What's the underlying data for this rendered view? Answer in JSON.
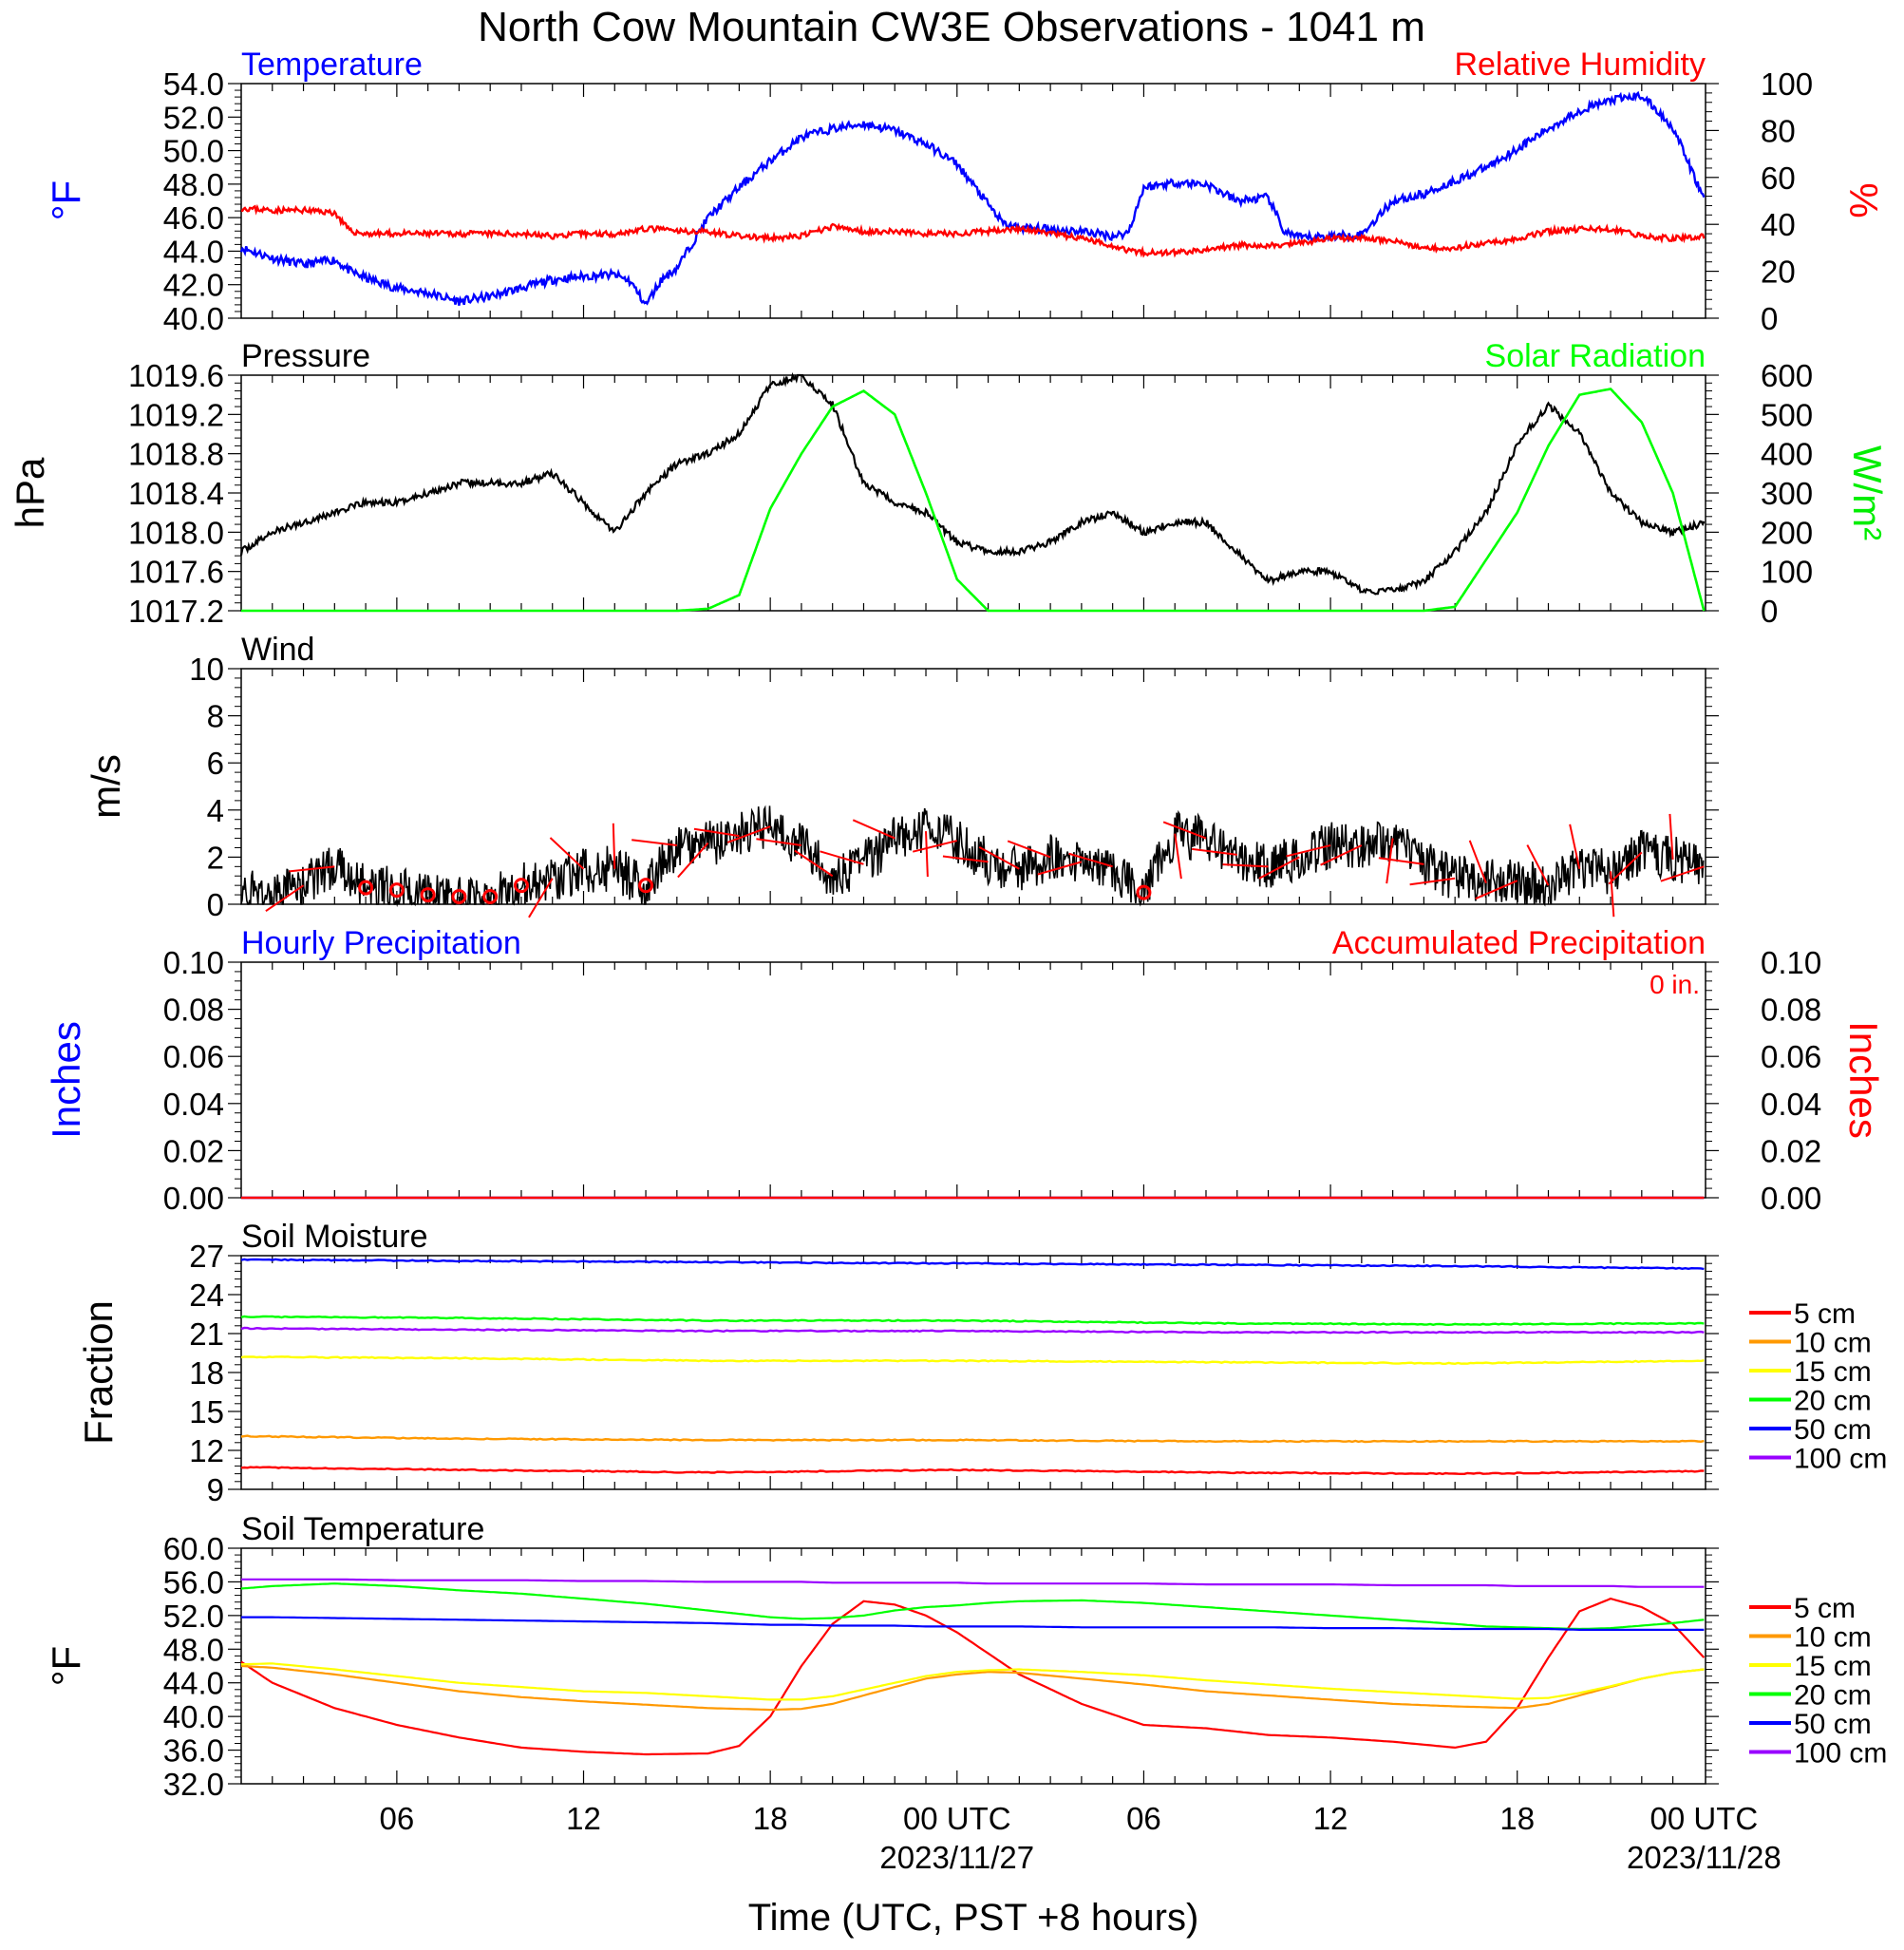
{
  "figure": {
    "title": "North Cow Mountain CW3E Observations - 1041 m",
    "xlabel": "Time (UTC, PST +8 hours)",
    "xticks": [
      {
        "t": 6,
        "label": "06"
      },
      {
        "t": 12,
        "label": "12"
      },
      {
        "t": 18,
        "label": "18"
      },
      {
        "t": 24,
        "label": "00 UTC",
        "sublabel": "2023/11/27"
      },
      {
        "t": 30,
        "label": "06"
      },
      {
        "t": 36,
        "label": "12"
      },
      {
        "t": 42,
        "label": "18"
      },
      {
        "t": 48,
        "label": "00 UTC",
        "sublabel": "2023/11/28"
      }
    ],
    "x_range_hours": [
      1,
      48.05
    ]
  },
  "chart_data": [
    {
      "type": "line",
      "panel": "temperature-rh",
      "title_left": "Temperature",
      "title_right": "Relative Humidity",
      "ylabel_left": "°F",
      "ylabel_right": "%",
      "ylim_left": [
        40,
        54
      ],
      "yticks_left": [
        "54.0",
        "52.0",
        "50.0",
        "48.0",
        "46.0",
        "44.0",
        "42.0",
        "40.0"
      ],
      "ylim_right": [
        0,
        100
      ],
      "yticks_right": [
        "100",
        "80",
        "60",
        "40",
        "20",
        "0"
      ],
      "x_hours": [
        1,
        2,
        3,
        4,
        4.5,
        5,
        6,
        7,
        8,
        9,
        10,
        11,
        12,
        13,
        13.5,
        14,
        14.5,
        15,
        16,
        17,
        18,
        19,
        20,
        21,
        22,
        23,
        24,
        25,
        25.5,
        26,
        27,
        28,
        29,
        29.5,
        30,
        31,
        32,
        33,
        34,
        34.5,
        35,
        36,
        37,
        38,
        39,
        40,
        41,
        42,
        43,
        44,
        45,
        46,
        47,
        48
      ],
      "series": [
        {
          "name": "Temperature",
          "color": "#0000ff",
          "axis": "left",
          "values": [
            44.2,
            43.6,
            43.2,
            43.5,
            42.8,
            42.4,
            41.8,
            41.5,
            41.0,
            41.3,
            41.8,
            42.3,
            42.5,
            42.6,
            42.2,
            40.8,
            42.3,
            43.0,
            46.0,
            47.8,
            49.4,
            50.8,
            51.3,
            51.6,
            51.2,
            50.4,
            49.2,
            46.8,
            45.6,
            45.4,
            45.3,
            45.2,
            44.9,
            45.1,
            47.8,
            48.1,
            48.0,
            47.0,
            47.2,
            45.2,
            44.8,
            44.9,
            45.0,
            47.0,
            47.4,
            48.2,
            49.0,
            50.1,
            51.3,
            52.4,
            53.0,
            53.3,
            51.4,
            47.1
          ]
        },
        {
          "name": "Relative Humidity",
          "color": "#ff0000",
          "axis": "right",
          "values": [
            47,
            46,
            46,
            45,
            37,
            36,
            36,
            36,
            36,
            36,
            36,
            35,
            36,
            36,
            37,
            38,
            38,
            37,
            37,
            35,
            34,
            35,
            39,
            37,
            37,
            36,
            36,
            37,
            38,
            38,
            36,
            34,
            31,
            29,
            28,
            28,
            29,
            31,
            31,
            31,
            32,
            34,
            34,
            33,
            30,
            30,
            32,
            34,
            37,
            38,
            38,
            35,
            34,
            35
          ]
        }
      ]
    },
    {
      "type": "line",
      "panel": "pressure-solar",
      "title_left": "Pressure",
      "title_right": "Solar Radiation",
      "ylabel_left": "hPa",
      "ylabel_right": "W/m²",
      "ylim_left": [
        1017.2,
        1019.6
      ],
      "yticks_left": [
        "1019.6",
        "1019.2",
        "1018.8",
        "1018.4",
        "1018.0",
        "1017.6",
        "1017.2"
      ],
      "ylim_right": [
        0,
        600
      ],
      "yticks_right": [
        "600",
        "500",
        "400",
        "300",
        "200",
        "100",
        "0"
      ],
      "x_hours": [
        1,
        2,
        3,
        4,
        5,
        6,
        7,
        8,
        9,
        10,
        11,
        12,
        13,
        14,
        15,
        16,
        17,
        18,
        19,
        20,
        21,
        22,
        23,
        24,
        25,
        26,
        27,
        28,
        29,
        30,
        31,
        32,
        33,
        34,
        35,
        36,
        37,
        38,
        39,
        40,
        41,
        42,
        43,
        44,
        45,
        46,
        47,
        48
      ],
      "series": [
        {
          "name": "Pressure",
          "color": "#000000",
          "axis": "left",
          "values": [
            1017.8,
            1018.0,
            1018.1,
            1018.2,
            1018.3,
            1018.3,
            1018.4,
            1018.5,
            1018.5,
            1018.5,
            1018.6,
            1018.3,
            1018.0,
            1018.4,
            1018.7,
            1018.8,
            1019.0,
            1019.5,
            1019.6,
            1019.3,
            1018.5,
            1018.3,
            1018.2,
            1017.9,
            1017.8,
            1017.8,
            1017.9,
            1018.1,
            1018.2,
            1018.0,
            1018.1,
            1018.1,
            1017.8,
            1017.5,
            1017.6,
            1017.6,
            1017.4,
            1017.4,
            1017.5,
            1017.8,
            1018.2,
            1018.9,
            1019.3,
            1019.0,
            1018.4,
            1018.1,
            1018.0,
            1018.1
          ]
        },
        {
          "name": "Solar Radiation",
          "color": "#00ff00",
          "axis": "right",
          "values": [
            0,
            0,
            0,
            0,
            0,
            0,
            0,
            0,
            0,
            0,
            0,
            0,
            0,
            0,
            0,
            5,
            40,
            260,
            400,
            520,
            560,
            500,
            300,
            80,
            0,
            0,
            0,
            0,
            0,
            0,
            0,
            0,
            0,
            0,
            0,
            0,
            0,
            0,
            0,
            10,
            130,
            250,
            420,
            550,
            565,
            480,
            300,
            0
          ]
        }
      ]
    },
    {
      "type": "line",
      "panel": "wind",
      "title_left": "Wind",
      "ylabel_left": "m/s",
      "ylim": [
        0,
        10
      ],
      "yticks": [
        "10",
        "8",
        "6",
        "4",
        "2",
        "0"
      ],
      "x_hours": [
        1,
        2,
        3,
        4,
        5,
        6,
        7,
        8,
        9,
        10,
        11,
        12,
        13,
        14,
        15,
        16,
        17,
        18,
        19,
        20,
        21,
        22,
        23,
        24,
        25,
        26,
        27,
        28,
        29,
        30,
        31,
        32,
        33,
        34,
        35,
        36,
        37,
        38,
        39,
        40,
        41,
        42,
        43,
        44,
        45,
        46,
        47,
        48
      ],
      "series": [
        {
          "name": "Wind speed",
          "color": "#000000",
          "values": [
            0.5,
            0.3,
            0.8,
            1.6,
            0.7,
            0.6,
            0.4,
            0.2,
            0.2,
            0.8,
            1.1,
            1.5,
            1.5,
            0.8,
            2.5,
            2.6,
            2.9,
            3.3,
            2.5,
            1.2,
            1.7,
            2.8,
            3.1,
            2.7,
            1.8,
            1.5,
            2.0,
            1.8,
            1.6,
            0.5,
            3.0,
            2.8,
            2.1,
            1.6,
            2.0,
            2.5,
            2.5,
            2.8,
            1.7,
            1.1,
            0.9,
            1.0,
            0.8,
            1.5,
            1.4,
            2.2,
            1.9,
            1.6
          ]
        },
        {
          "name": "Wind barbs",
          "color": "#ff0000"
        }
      ],
      "calm_markers_hours": [
        5,
        6,
        7,
        8,
        9,
        10,
        14,
        30
      ]
    },
    {
      "type": "line",
      "panel": "precipitation",
      "title_left": "Hourly Precipitation",
      "title_right": "Accumulated Precipitation",
      "annotation": "0 in.",
      "ylabel_left": "Inches",
      "ylabel_right": "Inches",
      "ylim": [
        0,
        0.1
      ],
      "yticks_left": [
        "0.10",
        "0.08",
        "0.06",
        "0.04",
        "0.02",
        "0.00"
      ],
      "yticks_right": [
        "0.10",
        "0.08",
        "0.06",
        "0.04",
        "0.02",
        "0.00"
      ],
      "x_hours": [
        1,
        48
      ],
      "series": [
        {
          "name": "Hourly Precipitation",
          "color": "#0000ff",
          "values": [
            0,
            0
          ]
        },
        {
          "name": "Accumulated Precipitation",
          "color": "#ff0000",
          "values": [
            0,
            0
          ]
        }
      ]
    },
    {
      "type": "line",
      "panel": "soil-moisture",
      "title_left": "Soil Moisture",
      "ylabel_left": "Fraction",
      "ylim": [
        9,
        27
      ],
      "yticks": [
        "27",
        "24",
        "21",
        "18",
        "15",
        "12",
        "9"
      ],
      "x_hours": [
        1,
        8,
        16,
        24,
        32,
        40,
        48
      ],
      "series": [
        {
          "name": "5 cm",
          "color": "#ff0000",
          "values": [
            10.7,
            10.5,
            10.3,
            10.5,
            10.3,
            10.2,
            10.4
          ]
        },
        {
          "name": "10 cm",
          "color": "#ff9900",
          "values": [
            13.1,
            12.9,
            12.8,
            12.8,
            12.7,
            12.7,
            12.7
          ]
        },
        {
          "name": "15 cm",
          "color": "#ffff00",
          "values": [
            19.2,
            19.1,
            18.9,
            18.9,
            18.8,
            18.7,
            18.9
          ]
        },
        {
          "name": "20 cm",
          "color": "#00ff00",
          "values": [
            22.3,
            22.2,
            22.0,
            22.0,
            21.8,
            21.7,
            21.8
          ]
        },
        {
          "name": "50 cm",
          "color": "#0000ff",
          "values": [
            26.7,
            26.6,
            26.5,
            26.4,
            26.3,
            26.2,
            26.0
          ]
        },
        {
          "name": "100 cm",
          "color": "#9900ff",
          "values": [
            21.4,
            21.3,
            21.2,
            21.2,
            21.1,
            21.1,
            21.1
          ]
        }
      ]
    },
    {
      "type": "line",
      "panel": "soil-temperature",
      "title_left": "Soil Temperature",
      "ylabel_left": "°F",
      "ylim": [
        32,
        60
      ],
      "yticks": [
        "60.0",
        "56.0",
        "52.0",
        "48.0",
        "44.0",
        "40.0",
        "36.0",
        "32.0"
      ],
      "x_hours": [
        1,
        2,
        4,
        6,
        8,
        10,
        12,
        14,
        16,
        17,
        18,
        19,
        20,
        21,
        22,
        23,
        24,
        25,
        26,
        28,
        30,
        32,
        34,
        36,
        38,
        40,
        41,
        42,
        43,
        44,
        45,
        46,
        47,
        48
      ],
      "series": [
        {
          "name": "5 cm",
          "color": "#ff0000",
          "values": [
            46.5,
            44.0,
            41.0,
            39.0,
            37.5,
            36.3,
            35.8,
            35.5,
            35.6,
            36.5,
            40.0,
            46.0,
            51.0,
            53.7,
            53.3,
            52.0,
            50.0,
            47.5,
            45.0,
            41.5,
            39.0,
            38.6,
            37.8,
            37.5,
            37.0,
            36.3,
            37.0,
            41.0,
            47.0,
            52.5,
            54.0,
            53.0,
            51.0,
            47.0
          ]
        },
        {
          "name": "10 cm",
          "color": "#ff9900",
          "values": [
            46.0,
            45.8,
            45.0,
            44.0,
            43.0,
            42.3,
            41.8,
            41.4,
            41.0,
            40.9,
            40.8,
            40.9,
            41.5,
            42.5,
            43.5,
            44.5,
            45.0,
            45.3,
            45.2,
            44.5,
            43.8,
            43.0,
            42.5,
            42.0,
            41.5,
            41.2,
            41.1,
            41.0,
            41.5,
            42.5,
            43.5,
            44.5,
            45.2,
            45.6
          ]
        },
        {
          "name": "15 cm",
          "color": "#ffff00",
          "values": [
            46.2,
            46.3,
            45.6,
            44.8,
            44.0,
            43.5,
            43.0,
            42.8,
            42.4,
            42.2,
            42.0,
            42.0,
            42.4,
            43.2,
            44.0,
            44.8,
            45.3,
            45.5,
            45.6,
            45.3,
            44.9,
            44.3,
            43.8,
            43.3,
            42.9,
            42.5,
            42.3,
            42.1,
            42.2,
            42.8,
            43.6,
            44.5,
            45.2,
            45.6
          ]
        },
        {
          "name": "20 cm",
          "color": "#00ff00",
          "values": [
            55.2,
            55.5,
            55.8,
            55.5,
            55.0,
            54.6,
            54.0,
            53.4,
            52.6,
            52.2,
            51.8,
            51.6,
            51.7,
            52.0,
            52.6,
            53.0,
            53.2,
            53.5,
            53.7,
            53.8,
            53.5,
            53.0,
            52.5,
            52.0,
            51.5,
            51.0,
            50.7,
            50.6,
            50.5,
            50.4,
            50.5,
            50.8,
            51.1,
            51.5
          ]
        },
        {
          "name": "50 cm",
          "color": "#0000ff",
          "values": [
            51.8,
            51.8,
            51.7,
            51.6,
            51.5,
            51.4,
            51.3,
            51.2,
            51.1,
            51.0,
            50.9,
            50.9,
            50.8,
            50.8,
            50.8,
            50.7,
            50.7,
            50.7,
            50.7,
            50.6,
            50.6,
            50.6,
            50.6,
            50.5,
            50.5,
            50.4,
            50.4,
            50.4,
            50.4,
            50.3,
            50.3,
            50.3,
            50.3,
            50.3
          ]
        },
        {
          "name": "100 cm",
          "color": "#9900ff",
          "values": [
            56.3,
            56.3,
            56.3,
            56.2,
            56.2,
            56.2,
            56.1,
            56.1,
            56.0,
            56.0,
            56.0,
            56.0,
            55.9,
            55.9,
            55.9,
            55.9,
            55.9,
            55.8,
            55.8,
            55.8,
            55.8,
            55.7,
            55.7,
            55.7,
            55.6,
            55.6,
            55.6,
            55.5,
            55.5,
            55.5,
            55.5,
            55.4,
            55.4,
            55.4
          ]
        }
      ]
    }
  ]
}
